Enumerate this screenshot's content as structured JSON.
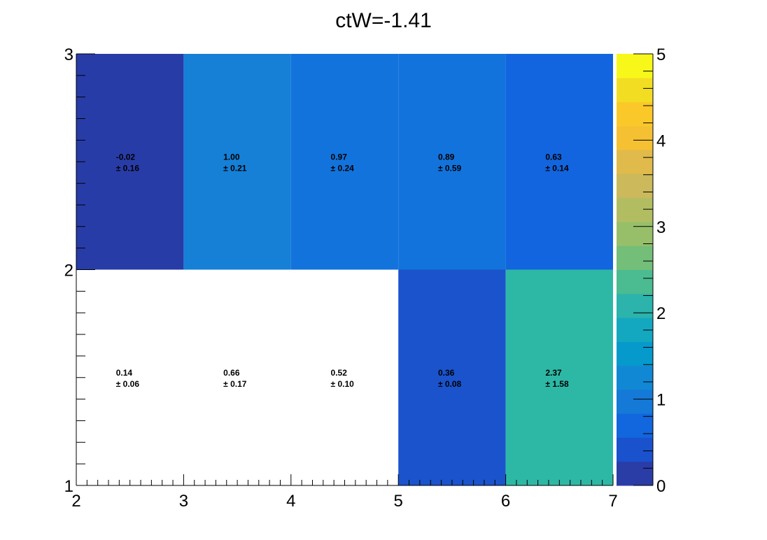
{
  "chart_data": {
    "type": "heatmap",
    "title": "ctW=-1.41",
    "xlabel": "",
    "ylabel": "",
    "xlim": [
      2,
      7
    ],
    "ylim": [
      1,
      3
    ],
    "zlim": [
      0,
      5
    ],
    "x_edges": [
      2,
      3,
      4,
      5,
      6,
      7
    ],
    "y_edges": [
      1,
      2,
      3
    ],
    "x_ticks": [
      "2",
      "3",
      "4",
      "5",
      "6",
      "7"
    ],
    "y_ticks": [
      "1",
      "2",
      "3"
    ],
    "z_ticks": [
      "0",
      "1",
      "2",
      "3",
      "4",
      "5"
    ],
    "colormap": "ROOT kBird",
    "palette": [
      "#2a3ca6",
      "#1a51cd",
      "#1266de",
      "#1579d8",
      "#1188d4",
      "#0699cc",
      "#14a8c0",
      "#2bb3ac",
      "#4bbb91",
      "#73be79",
      "#97bf6a",
      "#b2bd62",
      "#cbb95b",
      "#e0ba4b",
      "#f5c133",
      "#fac929",
      "#f3dd22",
      "#f7f71a"
    ],
    "cells": [
      {
        "x": 2.5,
        "y": 2.5,
        "value": -0.02,
        "label": "-0.02",
        "error_label": "± 0.16",
        "color": "#283ca8",
        "filled": true
      },
      {
        "x": 3.5,
        "y": 2.5,
        "value": 1.0,
        "label": "1.00",
        "error_label": "± 0.21",
        "color": "#1580d6",
        "filled": true
      },
      {
        "x": 4.5,
        "y": 2.5,
        "value": 0.97,
        "label": "0.97",
        "error_label": "± 0.24",
        "color": "#1373dc",
        "filled": true
      },
      {
        "x": 5.5,
        "y": 2.5,
        "value": 0.89,
        "label": "0.89",
        "error_label": "± 0.59",
        "color": "#1373dc",
        "filled": true
      },
      {
        "x": 6.5,
        "y": 2.5,
        "value": 0.63,
        "label": "0.63",
        "error_label": "± 0.14",
        "color": "#1265de",
        "filled": true
      },
      {
        "x": 2.5,
        "y": 1.5,
        "value": 0.14,
        "label": "0.14",
        "error_label": "± 0.06",
        "color": "#ffffff",
        "filled": false
      },
      {
        "x": 3.5,
        "y": 1.5,
        "value": 0.66,
        "label": "0.66",
        "error_label": "± 0.17",
        "color": "#ffffff",
        "filled": false
      },
      {
        "x": 4.5,
        "y": 1.5,
        "value": 0.52,
        "label": "0.52",
        "error_label": "± 0.10",
        "color": "#ffffff",
        "filled": false
      },
      {
        "x": 5.5,
        "y": 1.5,
        "value": 0.36,
        "label": "0.36",
        "error_label": "± 0.08",
        "color": "#1a53cc",
        "filled": true
      },
      {
        "x": 6.5,
        "y": 1.5,
        "value": 2.37,
        "label": "2.37",
        "error_label": "± 1.58",
        "color": "#2db8a6",
        "filled": true
      }
    ],
    "grid": false,
    "legend": "none"
  }
}
